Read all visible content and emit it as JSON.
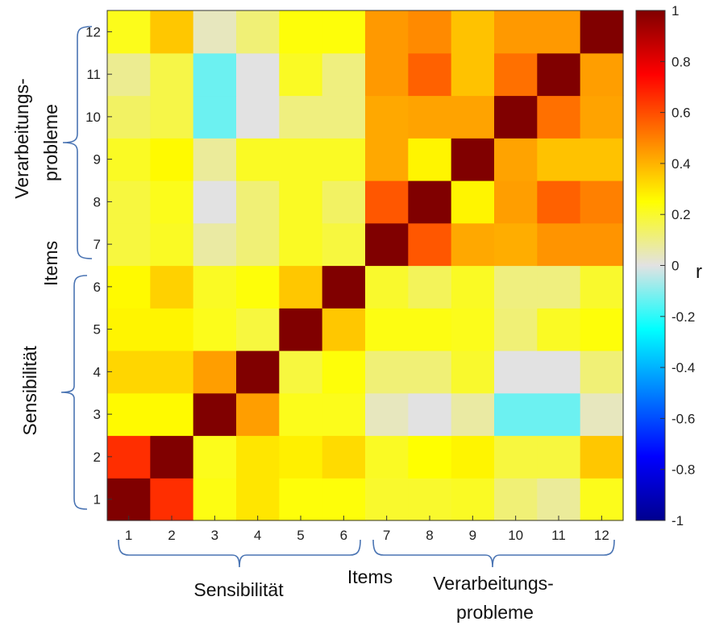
{
  "chart_data": {
    "type": "heatmap",
    "x_ticks": [
      "1",
      "2",
      "3",
      "4",
      "5",
      "6",
      "7",
      "8",
      "9",
      "10",
      "11",
      "12"
    ],
    "y_ticks": [
      "1",
      "2",
      "3",
      "4",
      "5",
      "6",
      "7",
      "8",
      "9",
      "10",
      "11",
      "12"
    ],
    "values": [
      [
        1.0,
        0.66,
        0.23,
        0.3,
        0.24,
        0.24,
        0.2,
        0.2,
        0.21,
        0.12,
        0.08,
        0.22
      ],
      [
        0.66,
        1.0,
        0.22,
        0.3,
        0.28,
        0.32,
        0.21,
        0.25,
        0.27,
        0.18,
        0.18,
        0.36
      ],
      [
        0.26,
        0.26,
        1.0,
        0.44,
        0.22,
        0.22,
        0.04,
        0.0,
        0.07,
        -0.13,
        -0.13,
        0.04
      ],
      [
        0.33,
        0.33,
        0.44,
        1.0,
        0.18,
        0.24,
        0.12,
        0.12,
        0.2,
        0.0,
        0.0,
        0.12
      ],
      [
        0.27,
        0.27,
        0.22,
        0.18,
        1.0,
        0.36,
        0.23,
        0.23,
        0.22,
        0.12,
        0.21,
        0.24
      ],
      [
        0.26,
        0.34,
        0.21,
        0.24,
        0.36,
        1.0,
        0.2,
        0.15,
        0.21,
        0.11,
        0.11,
        0.2
      ],
      [
        0.18,
        0.21,
        0.07,
        0.12,
        0.21,
        0.18,
        1.0,
        0.58,
        0.42,
        0.41,
        0.46,
        0.46
      ],
      [
        0.18,
        0.22,
        0.0,
        0.12,
        0.21,
        0.14,
        0.58,
        1.0,
        0.27,
        0.44,
        0.56,
        0.5
      ],
      [
        0.21,
        0.26,
        0.08,
        0.21,
        0.21,
        0.21,
        0.42,
        0.27,
        1.0,
        0.43,
        0.37,
        0.37
      ],
      [
        0.14,
        0.17,
        -0.13,
        0.0,
        0.11,
        0.11,
        0.42,
        0.43,
        0.43,
        1.0,
        0.53,
        0.43
      ],
      [
        0.09,
        0.17,
        -0.13,
        0.0,
        0.21,
        0.11,
        0.45,
        0.56,
        0.37,
        0.53,
        1.0,
        0.44
      ],
      [
        0.22,
        0.36,
        0.04,
        0.12,
        0.24,
        0.24,
        0.45,
        0.48,
        0.37,
        0.45,
        0.45,
        1.0
      ]
    ],
    "colorbar": {
      "range": [
        -1,
        1
      ],
      "ticks": [
        "-1",
        "-0.8",
        "-0.6",
        "-0.4",
        "-0.2",
        "0",
        "0.2",
        "0.4",
        "0.6",
        "0.8",
        "1"
      ],
      "label": "r",
      "colormap": "jet with white-grey at 0"
    },
    "x_groups": [
      {
        "label": "Sensibilität",
        "from": 1,
        "to": 6
      },
      {
        "label": "Verarbeitungs-",
        "label2": "probleme",
        "from": 7,
        "to": 12
      }
    ],
    "x_group_title": "Items",
    "y_groups": [
      {
        "label": "Sensibilität",
        "from": 1,
        "to": 6
      },
      {
        "label": "Verarbeitungs-",
        "label2": "probleme",
        "from": 7,
        "to": 12
      }
    ],
    "y_group_title": "Items"
  }
}
